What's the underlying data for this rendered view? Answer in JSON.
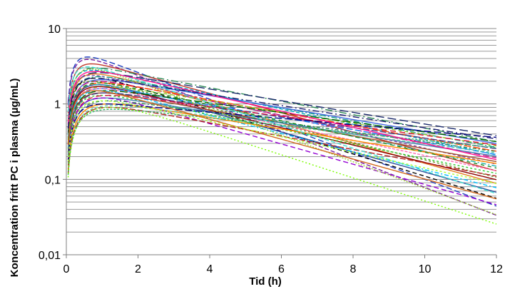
{
  "chart_data": {
    "type": "line",
    "title": "",
    "xlabel": "Tid (h)",
    "ylabel": "Koncentration  fritt  PC i plasma  (µg/mL)",
    "xlim": [
      0,
      12
    ],
    "ylim": [
      0.01,
      10
    ],
    "yscale": "log",
    "x_ticks": [
      0,
      2,
      4,
      6,
      8,
      10,
      12
    ],
    "x_tick_labels": [
      "0",
      "2",
      "4",
      "6",
      "8",
      "10",
      "12"
    ],
    "y_ticks": [
      0.01,
      0.1,
      1,
      10
    ],
    "y_tick_labels": [
      "0,01",
      "0,1",
      "1",
      "10"
    ],
    "grid": "horizontal-log-minor",
    "legend": "none",
    "model": "one-compartment-oral-absorption",
    "series_description": "about 100 simulated individual concentration-time curves in mixed colours and dash styles",
    "series": [
      {
        "cmax": 4.2,
        "tmax": 0.6,
        "conc_at_12h": 0.04,
        "color": "#1f3fbf",
        "dash": "8,4"
      },
      {
        "cmax": 3.9,
        "tmax": 0.6,
        "conc_at_12h": 0.03,
        "color": "#7a1fa0",
        "dash": "6,3"
      },
      {
        "cmax": 3.4,
        "tmax": 0.7,
        "conc_at_12h": 0.12,
        "color": "#c0392b",
        "dash": ""
      },
      {
        "cmax": 3.0,
        "tmax": 0.8,
        "conc_at_12h": 0.3,
        "color": "#2e8b57",
        "dash": "10,4,2,4"
      },
      {
        "cmax": 2.8,
        "tmax": 0.7,
        "conc_at_12h": 0.2,
        "color": "#00a5c8",
        "dash": "5,3"
      },
      {
        "cmax": 2.6,
        "tmax": 0.9,
        "conc_at_12h": 0.36,
        "color": "#1b2a6b",
        "dash": "12,5"
      },
      {
        "cmax": 2.5,
        "tmax": 0.8,
        "conc_at_12h": 0.08,
        "color": "#e67e22",
        "dash": ""
      },
      {
        "cmax": 2.4,
        "tmax": 0.7,
        "conc_at_12h": 0.15,
        "color": "#8e44ad",
        "dash": "4,3"
      },
      {
        "cmax": 2.3,
        "tmax": 0.9,
        "conc_at_12h": 0.25,
        "color": "#16a085",
        "dash": "8,3,2,3"
      },
      {
        "cmax": 2.2,
        "tmax": 0.8,
        "conc_at_12h": 0.05,
        "color": "#000000",
        "dash": "6,4"
      },
      {
        "cmax": 2.1,
        "tmax": 1.0,
        "conc_at_12h": 0.28,
        "color": "#4169e1",
        "dash": ""
      },
      {
        "cmax": 2.0,
        "tmax": 0.9,
        "conc_at_12h": 0.18,
        "color": "#c71585",
        "dash": "9,4"
      },
      {
        "cmax": 2.0,
        "tmax": 0.7,
        "conc_at_12h": 0.1,
        "color": "#6b8e23",
        "dash": "3,3"
      },
      {
        "cmax": 1.9,
        "tmax": 1.0,
        "conc_at_12h": 0.22,
        "color": "#ff4500",
        "dash": "10,3"
      },
      {
        "cmax": 1.8,
        "tmax": 0.9,
        "conc_at_12h": 0.06,
        "color": "#2f4f9f",
        "dash": ""
      },
      {
        "cmax": 1.8,
        "tmax": 0.8,
        "conc_at_12h": 0.14,
        "color": "#20b2aa",
        "dash": "7,3,2,3"
      },
      {
        "cmax": 1.7,
        "tmax": 1.1,
        "conc_at_12h": 0.26,
        "color": "#9acd32",
        "dash": "5,4"
      },
      {
        "cmax": 1.7,
        "tmax": 0.9,
        "conc_at_12h": 0.09,
        "color": "#8b0000",
        "dash": ""
      },
      {
        "cmax": 1.6,
        "tmax": 1.0,
        "conc_at_12h": 0.2,
        "color": "#1e90ff",
        "dash": "8,4"
      },
      {
        "cmax": 1.6,
        "tmax": 0.9,
        "conc_at_12h": 0.12,
        "color": "#ff69b4",
        "dash": "4,2"
      },
      {
        "cmax": 1.5,
        "tmax": 1.1,
        "conc_at_12h": 0.3,
        "color": "#006400",
        "dash": "11,4"
      },
      {
        "cmax": 1.5,
        "tmax": 0.9,
        "conc_at_12h": 0.07,
        "color": "#00bfff",
        "dash": "6,3,2,3"
      },
      {
        "cmax": 1.4,
        "tmax": 1.0,
        "conc_at_12h": 0.16,
        "color": "#a0522d",
        "dash": ""
      },
      {
        "cmax": 1.4,
        "tmax": 1.1,
        "conc_at_12h": 0.24,
        "color": "#483d8b",
        "dash": "9,3"
      },
      {
        "cmax": 1.3,
        "tmax": 1.0,
        "conc_at_12h": 0.11,
        "color": "#32cd32",
        "dash": "3,3"
      },
      {
        "cmax": 1.3,
        "tmax": 1.2,
        "conc_at_12h": 0.27,
        "color": "#dc143c",
        "dash": "8,5"
      },
      {
        "cmax": 1.2,
        "tmax": 1.1,
        "conc_at_12h": 0.19,
        "color": "#4682b4",
        "dash": ""
      },
      {
        "cmax": 1.2,
        "tmax": 1.0,
        "conc_at_12h": 0.04,
        "color": "#9400d3",
        "dash": "7,4"
      },
      {
        "cmax": 1.1,
        "tmax": 1.2,
        "conc_at_12h": 0.22,
        "color": "#2e8b57",
        "dash": "5,3,2,3"
      },
      {
        "cmax": 1.0,
        "tmax": 1.2,
        "conc_at_12h": 0.15,
        "color": "#ff8c00",
        "dash": ""
      },
      {
        "cmax": 1.0,
        "tmax": 1.1,
        "conc_at_12h": 0.35,
        "color": "#000080",
        "dash": "10,4"
      },
      {
        "cmax": 0.95,
        "tmax": 1.3,
        "conc_at_12h": 0.21,
        "color": "#66cdaa",
        "dash": "4,3"
      },
      {
        "cmax": 0.9,
        "tmax": 1.2,
        "conc_at_12h": 0.1,
        "color": "#b22222",
        "dash": "8,3"
      },
      {
        "cmax": 0.85,
        "tmax": 1.3,
        "conc_at_12h": 0.25,
        "color": "#3cb371",
        "dash": "3,2"
      },
      {
        "cmax": 2.9,
        "tmax": 0.7,
        "conc_at_12h": 0.03,
        "color": "#9acd32",
        "dash": "2,2"
      },
      {
        "cmax": 3.1,
        "tmax": 0.6,
        "conc_at_12h": 0.06,
        "color": "#40e0d0",
        "dash": "6,3"
      },
      {
        "cmax": 2.7,
        "tmax": 0.8,
        "conc_at_12h": 0.17,
        "color": "#ff1493",
        "dash": ""
      },
      {
        "cmax": 2.2,
        "tmax": 0.8,
        "conc_at_12h": 0.33,
        "color": "#191970",
        "dash": "9,4,2,4"
      },
      {
        "cmax": 1.9,
        "tmax": 0.9,
        "conc_at_12h": 0.13,
        "color": "#228b22",
        "dash": "5,5"
      },
      {
        "cmax": 1.5,
        "tmax": 0.8,
        "conc_at_12h": 0.05,
        "color": "#d2691e",
        "dash": ""
      },
      {
        "cmax": 1.1,
        "tmax": 1.0,
        "conc_at_12h": 0.08,
        "color": "#adff2f",
        "dash": "3,3"
      },
      {
        "cmax": 0.9,
        "tmax": 1.2,
        "conc_at_12h": 0.02,
        "color": "#7cfc00",
        "dash": "2,3"
      }
    ]
  }
}
